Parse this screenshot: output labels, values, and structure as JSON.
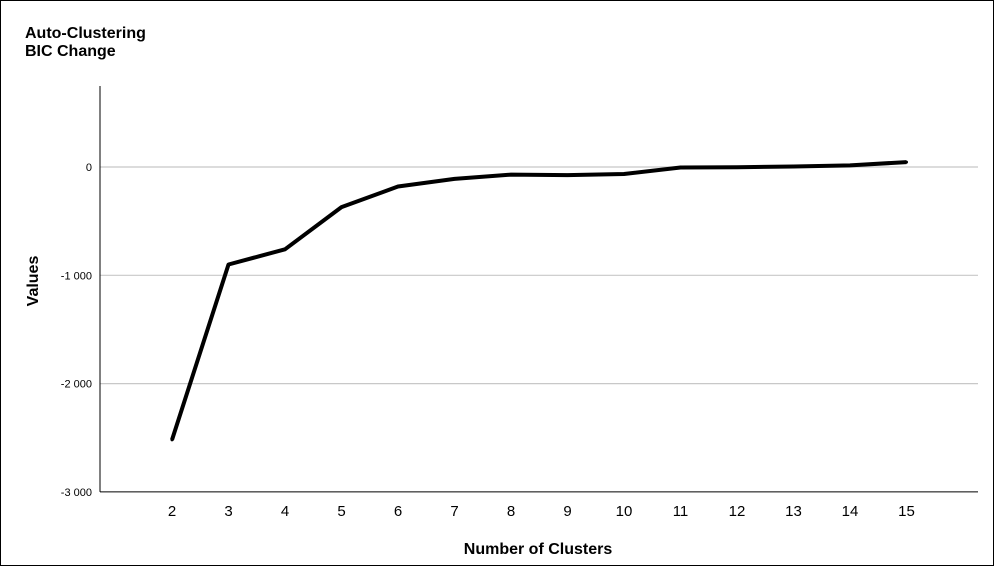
{
  "chart_data": {
    "type": "line",
    "title": [
      "Auto-Clustering",
      "BIC Change"
    ],
    "xlabel": "Number of Clusters",
    "ylabel": "Values",
    "x": [
      2,
      3,
      4,
      5,
      6,
      7,
      8,
      9,
      10,
      11,
      12,
      13,
      14,
      15
    ],
    "series": [
      {
        "values": [
          -2520,
          -900,
          -760,
          -370,
          -180,
          -110,
          -70,
          -75,
          -65,
          -5,
          -2,
          5,
          15,
          45
        ]
      }
    ],
    "ylim": [
      -3000,
      800
    ],
    "yticks": [
      0,
      -1000,
      -2000,
      -3000
    ],
    "ytick_labels": [
      "0",
      "-1 000",
      "-2 000",
      "-3 000"
    ],
    "grid": "horizontal",
    "legend": "none",
    "line_color": "#000000",
    "grid_color": "#c8c8c8"
  }
}
